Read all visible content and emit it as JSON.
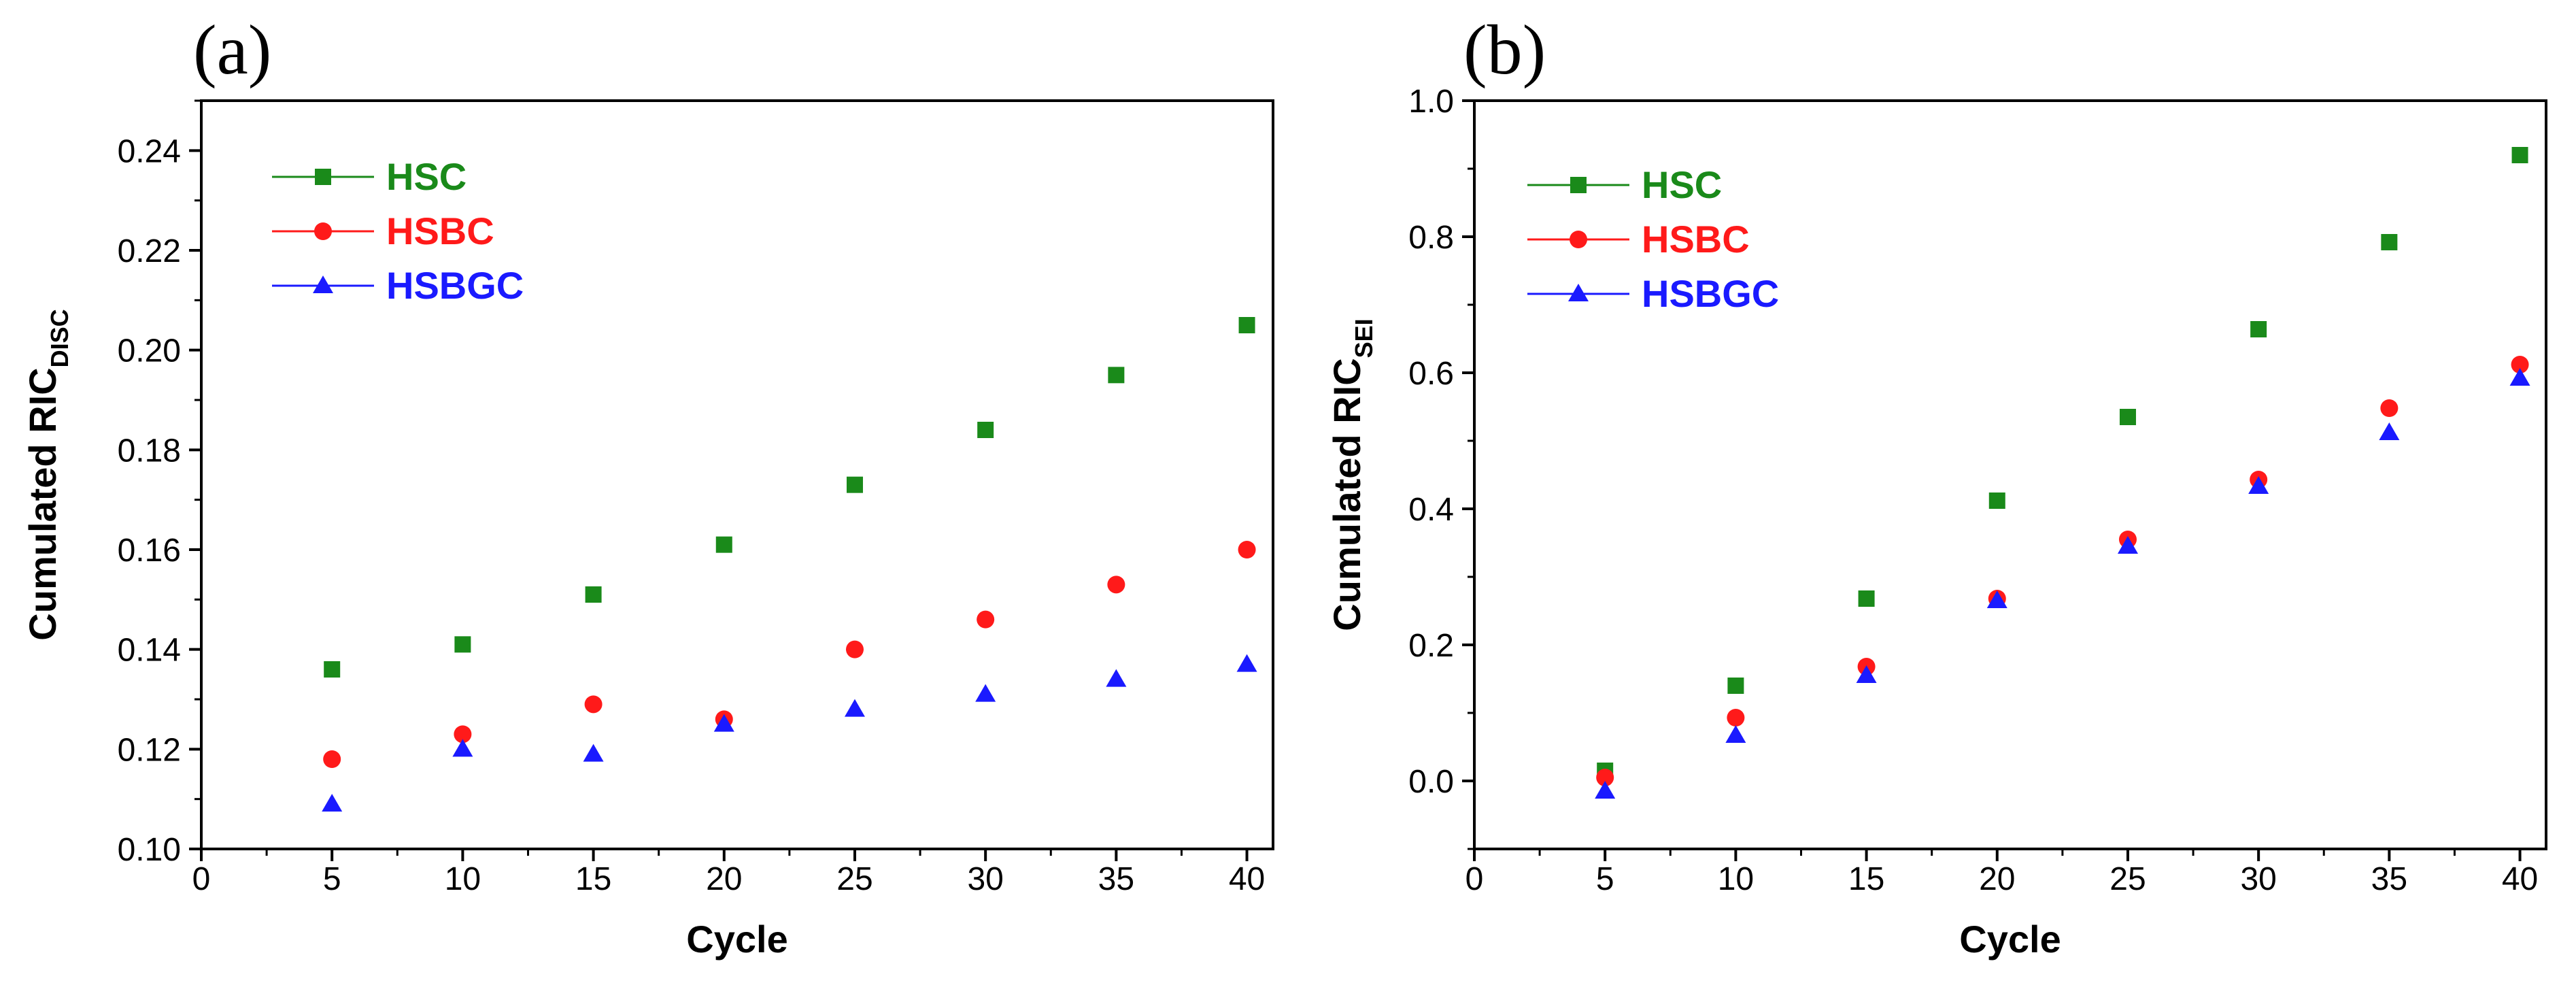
{
  "colors": {
    "HSC": "#1a8a1a",
    "HSBC": "#ff1a1a",
    "HSBGC": "#1a1aff",
    "axis": "#000000"
  },
  "chart_data": [
    {
      "type": "scatter",
      "panel_label": "(a)",
      "xlabel": "Cycle",
      "ylabel_main": "Cumulated RIC",
      "ylabel_sub": "DISC",
      "xlim": [
        0,
        41
      ],
      "ylim": [
        0.1,
        0.25
      ],
      "xticks": [
        0,
        5,
        10,
        15,
        20,
        25,
        30,
        35,
        40
      ],
      "xtick_labels": [
        "0",
        "5",
        "10",
        "15",
        "20",
        "25",
        "30",
        "35",
        "40"
      ],
      "yticks": [
        0.1,
        0.12,
        0.14,
        0.16,
        0.18,
        0.2,
        0.22,
        0.24
      ],
      "ytick_labels": [
        "0.10",
        "0.12",
        "0.14",
        "0.16",
        "0.18",
        "0.20",
        "0.22",
        "0.24"
      ],
      "legend_position": "top-left",
      "grid": false,
      "series": [
        {
          "name": "HSC",
          "marker": "square",
          "x": [
            5,
            10,
            15,
            20,
            25,
            30,
            35,
            40
          ],
          "y": [
            0.136,
            0.141,
            0.151,
            0.161,
            0.173,
            0.184,
            0.195,
            0.205
          ]
        },
        {
          "name": "HSBC",
          "marker": "circle",
          "x": [
            5,
            10,
            15,
            20,
            25,
            30,
            35,
            40
          ],
          "y": [
            0.118,
            0.123,
            0.129,
            0.126,
            0.14,
            0.146,
            0.153,
            0.16
          ]
        },
        {
          "name": "HSBGC",
          "marker": "triangle",
          "x": [
            5,
            10,
            15,
            20,
            25,
            30,
            35,
            40
          ],
          "y": [
            0.109,
            0.12,
            0.119,
            0.125,
            0.128,
            0.131,
            0.134,
            0.137
          ]
        }
      ]
    },
    {
      "type": "scatter",
      "panel_label": "(b)",
      "xlabel": "Cycle",
      "ylabel_main": "Cumulated RIC",
      "ylabel_sub": "SEI",
      "xlim": [
        0,
        41
      ],
      "ylim": [
        -0.1,
        1.0
      ],
      "xticks": [
        0,
        5,
        10,
        15,
        20,
        25,
        30,
        35,
        40
      ],
      "xtick_labels": [
        "0",
        "5",
        "10",
        "15",
        "20",
        "25",
        "30",
        "35",
        "40"
      ],
      "yticks": [
        0.0,
        0.2,
        0.4,
        0.6,
        0.8,
        1.0
      ],
      "ytick_labels": [
        "0.0",
        "0.2",
        "0.4",
        "0.6",
        "0.8",
        "1.0"
      ],
      "legend_position": "top-left",
      "grid": false,
      "series": [
        {
          "name": "HSC",
          "marker": "square",
          "x": [
            5,
            10,
            15,
            20,
            25,
            30,
            35,
            40
          ],
          "y": [
            0.015,
            0.14,
            0.268,
            0.412,
            0.535,
            0.664,
            0.792,
            0.92
          ]
        },
        {
          "name": "HSBC",
          "marker": "circle",
          "x": [
            5,
            10,
            15,
            20,
            25,
            30,
            35,
            40
          ],
          "y": [
            0.005,
            0.093,
            0.168,
            0.268,
            0.355,
            0.443,
            0.548,
            0.612
          ]
        },
        {
          "name": "HSBGC",
          "marker": "triangle",
          "x": [
            5,
            10,
            15,
            20,
            25,
            30,
            35,
            40
          ],
          "y": [
            -0.015,
            0.067,
            0.155,
            0.265,
            0.345,
            0.433,
            0.512,
            0.592
          ]
        }
      ]
    }
  ]
}
